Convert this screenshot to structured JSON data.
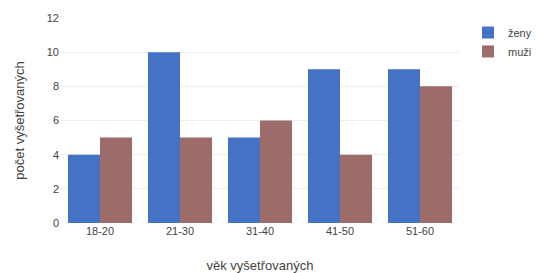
{
  "chart_data": {
    "type": "bar",
    "xlabel": "věk vyšetřovaných",
    "ylabel": "počet vyšetřovaných",
    "categories": [
      "18-20",
      "21-30",
      "31-40",
      "41-50",
      "51-60"
    ],
    "series": [
      {
        "name": "ženy",
        "color": "#4472C4",
        "values": [
          4,
          10,
          5,
          9,
          9
        ]
      },
      {
        "name": "muži",
        "color": "#9E6B6B",
        "values": [
          5,
          5,
          6,
          4,
          8
        ]
      }
    ],
    "ylim": [
      0,
      12
    ],
    "yticks": [
      0,
      2,
      4,
      6,
      8,
      10,
      12
    ],
    "grid": true,
    "legend": "upper right"
  }
}
